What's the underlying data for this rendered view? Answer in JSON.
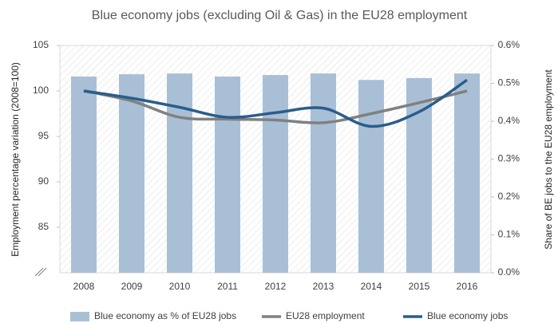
{
  "chart_data": {
    "type": "bar",
    "title": "Blue economy jobs (excluding Oil & Gas) in the EU28 employment",
    "ylabel": "Employment percentage variation (2008=100)",
    "y2label": "Share of BE jobs to the EU28 employment",
    "categories": [
      "2008",
      "2009",
      "2010",
      "2011",
      "2012",
      "2013",
      "2014",
      "2015",
      "2016"
    ],
    "series": [
      {
        "name": "Blue economy as % of EU28 jobs",
        "type": "bar",
        "axis": "y2",
        "color": "#a9bfd5",
        "values": [
          0.518,
          0.524,
          0.526,
          0.518,
          0.522,
          0.526,
          0.509,
          0.514,
          0.526
        ]
      },
      {
        "name": "EU28 employment",
        "type": "line",
        "color": "#808080",
        "values": [
          100,
          98.9,
          97.1,
          96.9,
          96.8,
          96.5,
          97.5,
          98.7,
          100
        ]
      },
      {
        "name": "Blue economy jobs",
        "type": "line",
        "color": "#2a5d8c",
        "values": [
          100,
          99.2,
          98.2,
          97.1,
          97.6,
          98.1,
          96.1,
          97.7,
          101.2
        ]
      }
    ],
    "ylim": [
      80,
      105
    ],
    "yticks": [
      85,
      90,
      95,
      100,
      105
    ],
    "y2lim": [
      0,
      0.6
    ],
    "y2ticks": [
      {
        "value": 0,
        "label": "0.0%"
      },
      {
        "value": 0.1,
        "label": "0.1%"
      },
      {
        "value": 0.2,
        "label": "0.2%"
      },
      {
        "value": 0.3,
        "label": "0.3%"
      },
      {
        "value": 0.4,
        "label": "0.4%"
      },
      {
        "value": 0.5,
        "label": "0.5%"
      },
      {
        "value": 0.6,
        "label": "0.6%"
      }
    ],
    "legend": "bottom"
  }
}
